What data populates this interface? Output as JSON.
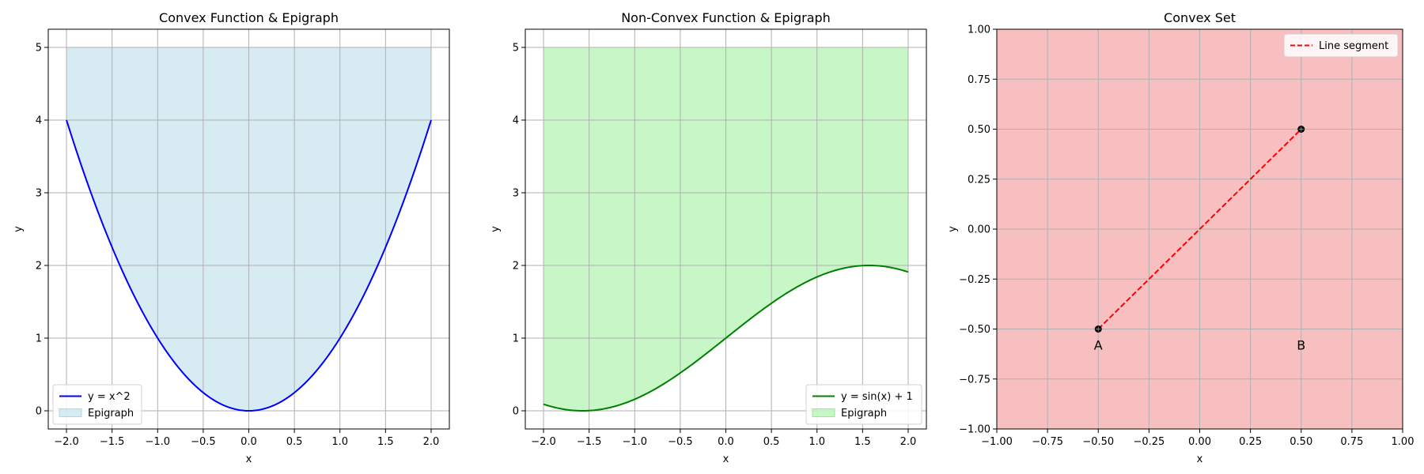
{
  "chart_data": [
    {
      "type": "line",
      "title": "Convex Function & Epigraph",
      "xlabel": "x",
      "ylabel": "y",
      "xlim": [
        -2.2,
        2.2
      ],
      "ylim": [
        -0.25,
        5.25
      ],
      "xticks": [
        -2.0,
        -1.5,
        -1.0,
        -0.5,
        0.0,
        0.5,
        1.0,
        1.5,
        2.0
      ],
      "xtick_labels": [
        "−2.0",
        "−1.5",
        "−1.0",
        "−0.5",
        "0.0",
        "0.5",
        "1.0",
        "1.5",
        "2.0"
      ],
      "yticks": [
        0,
        1,
        2,
        3,
        4,
        5
      ],
      "ytick_labels": [
        "0",
        "1",
        "2",
        "3",
        "4",
        "5"
      ],
      "grid": true,
      "legend_placement": "lower-left",
      "curve": {
        "function": "x^2",
        "domain": [
          -2,
          2
        ],
        "color": "#0000ff"
      },
      "fill": {
        "upper": 5,
        "color": "#add8e6",
        "alpha": 0.5
      },
      "legend": [
        {
          "label": "y = x^2",
          "kind": "line",
          "color": "#0000ff"
        },
        {
          "label": "Epigraph",
          "kind": "patch",
          "color": "#add8e6"
        }
      ]
    },
    {
      "type": "line",
      "title": "Non-Convex Function & Epigraph",
      "xlabel": "x",
      "ylabel": "y",
      "xlim": [
        -2.2,
        2.2
      ],
      "ylim": [
        -0.25,
        5.25
      ],
      "xticks": [
        -2.0,
        -1.5,
        -1.0,
        -0.5,
        0.0,
        0.5,
        1.0,
        1.5,
        2.0
      ],
      "xtick_labels": [
        "−2.0",
        "−1.5",
        "−1.0",
        "−0.5",
        "0.0",
        "0.5",
        "1.0",
        "1.5",
        "2.0"
      ],
      "yticks": [
        0,
        1,
        2,
        3,
        4,
        5
      ],
      "ytick_labels": [
        "0",
        "1",
        "2",
        "3",
        "4",
        "5"
      ],
      "grid": true,
      "legend_placement": "lower-right",
      "curve": {
        "function": "sin(x) + 1",
        "domain": [
          -2,
          2
        ],
        "color": "#008000"
      },
      "fill": {
        "upper": 5,
        "color": "#90ee90",
        "alpha": 0.5
      },
      "legend": [
        {
          "label": "y = sin(x) + 1",
          "kind": "line",
          "color": "#008000"
        },
        {
          "label": "Epigraph",
          "kind": "patch",
          "color": "#90ee90"
        }
      ]
    },
    {
      "type": "scatter",
      "title": "Convex Set",
      "xlabel": "x",
      "ylabel": "y",
      "xlim": [
        -1,
        1
      ],
      "ylim": [
        -1,
        1
      ],
      "xticks": [
        -1.0,
        -0.75,
        -0.5,
        -0.25,
        0.0,
        0.25,
        0.5,
        0.75,
        1.0
      ],
      "xtick_labels": [
        "−1.00",
        "−0.75",
        "−0.50",
        "−0.25",
        "0.00",
        "0.25",
        "0.50",
        "0.75",
        "1.00"
      ],
      "yticks": [
        -1.0,
        -0.75,
        -0.5,
        -0.25,
        0.0,
        0.25,
        0.5,
        0.75,
        1.0
      ],
      "ytick_labels": [
        "−1.00",
        "−0.75",
        "−0.50",
        "−0.25",
        "0.00",
        "0.25",
        "0.50",
        "0.75",
        "1.00"
      ],
      "grid": true,
      "legend_placement": "top-right",
      "region": {
        "color": "#f08080",
        "alpha": 0.5
      },
      "points": [
        {
          "name": "A",
          "x": -0.5,
          "y": -0.5
        },
        {
          "name": "B",
          "x": 0.5,
          "y": 0.5
        }
      ],
      "point_labels": [
        {
          "text": "A",
          "x": -0.5,
          "y": -0.58
        },
        {
          "text": "B",
          "x": 0.5,
          "y": -0.58
        }
      ],
      "segment": {
        "from": [
          -0.5,
          -0.5
        ],
        "to": [
          0.5,
          0.5
        ],
        "color": "#ff0000",
        "style": "dashed"
      },
      "legend": [
        {
          "label": "Line segment",
          "kind": "dashed-line",
          "color": "#ff0000"
        }
      ]
    }
  ]
}
